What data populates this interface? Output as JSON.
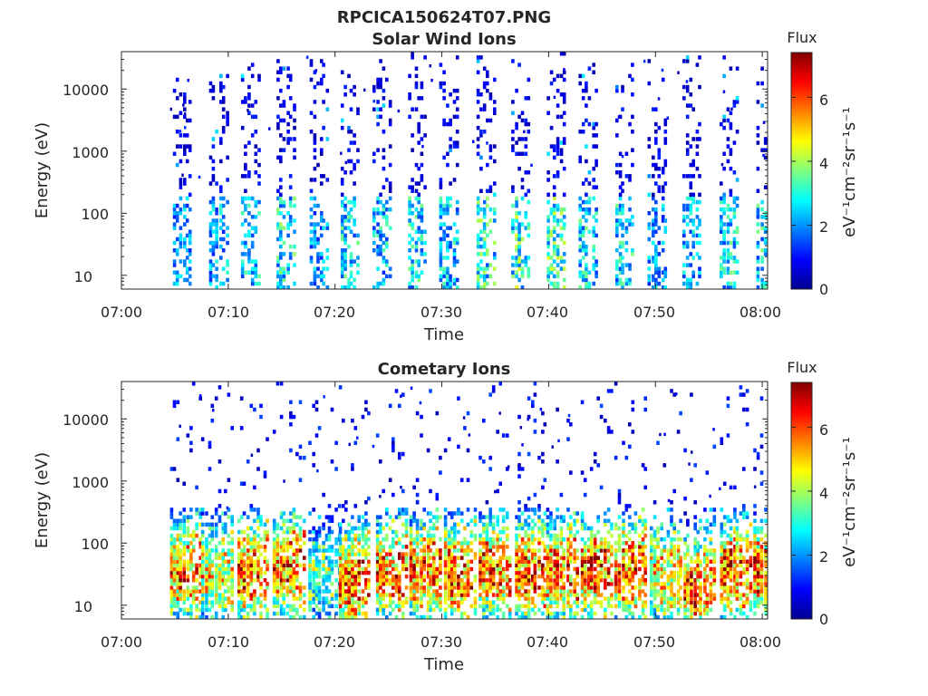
{
  "figure": {
    "title": "RPCICA150624T07.PNG"
  },
  "chart_data": [
    {
      "type": "heatmap",
      "title": "Solar Wind Ions",
      "xlabel": "Time",
      "ylabel": "Energy (eV)",
      "x_ticks": [
        "07:00",
        "07:10",
        "07:20",
        "07:30",
        "07:40",
        "07:50",
        "08:00"
      ],
      "x_range_minutes": [
        0,
        60.5
      ],
      "y_scale": "log",
      "y_ticks": [
        "10",
        "100",
        "1000",
        "10000"
      ],
      "y_range_eV": [
        6,
        40000
      ],
      "colorbar": {
        "title": "Flux",
        "label": "eV⁻¹cm⁻²sr⁻¹s⁻¹",
        "ticks": [
          "0",
          "2",
          "4",
          "6"
        ],
        "range": [
          0,
          7.4
        ],
        "colormap": "jet"
      },
      "sweep_start_minutes": [
        4.8,
        8.2,
        11.2,
        14.5,
        17.6,
        20.5,
        23.5,
        26.8,
        29.8,
        33.2,
        36.5,
        39.8,
        42.8,
        46.2,
        49.3,
        52.5,
        56.0,
        59.5
      ],
      "sweep_peak_flux": [
        3.0,
        3.2,
        3.5,
        4.0,
        3.0,
        3.8,
        3.5,
        3.8,
        3.5,
        4.2,
        4.5,
        4.5,
        3.8,
        3.8,
        3.0,
        3.2,
        3.8,
        3.8
      ],
      "sweep_max_energy_eV": [
        12000,
        20000,
        25000,
        30000,
        30000,
        35000,
        28000,
        30000,
        32000,
        30000,
        30000,
        30000,
        25000,
        28000,
        30000,
        30000,
        32000,
        30000
      ],
      "background_flux": [
        0.3,
        1.2
      ]
    },
    {
      "type": "heatmap",
      "title": "Cometary Ions",
      "xlabel": "Time",
      "ylabel": "Energy (eV)",
      "x_ticks": [
        "07:00",
        "07:10",
        "07:20",
        "07:30",
        "07:40",
        "07:50",
        "08:00"
      ],
      "x_range_minutes": [
        0,
        60.5
      ],
      "y_scale": "log",
      "y_ticks": [
        "10",
        "100",
        "1000",
        "10000"
      ],
      "y_range_eV": [
        6,
        40000
      ],
      "colorbar": {
        "title": "Flux",
        "label": "eV⁻¹cm⁻²sr⁻¹s⁻¹",
        "ticks": [
          "0",
          "2",
          "4",
          "6"
        ],
        "range": [
          0,
          7.4
        ],
        "colormap": "jet"
      },
      "sweep_start_minutes": [
        4.5,
        7.5,
        10.8,
        14.2,
        17.5,
        20.3,
        23.8,
        27.0,
        30.2,
        33.5,
        36.8,
        39.8,
        43.0,
        46.2,
        49.5,
        52.6,
        56.0,
        59.2
      ],
      "sweep_peak_flux": [
        6.3,
        5.2,
        6.8,
        6.8,
        3.8,
        7.0,
        6.5,
        6.8,
        6.8,
        6.8,
        7.0,
        6.8,
        6.8,
        6.8,
        5.5,
        6.8,
        6.8,
        6.8
      ],
      "sweep_peak_energy_eV": [
        35,
        35,
        35,
        40,
        30,
        25,
        35,
        35,
        35,
        40,
        35,
        35,
        35,
        35,
        30,
        18,
        35,
        35
      ],
      "background_flux": [
        0.3,
        1.5
      ]
    }
  ]
}
